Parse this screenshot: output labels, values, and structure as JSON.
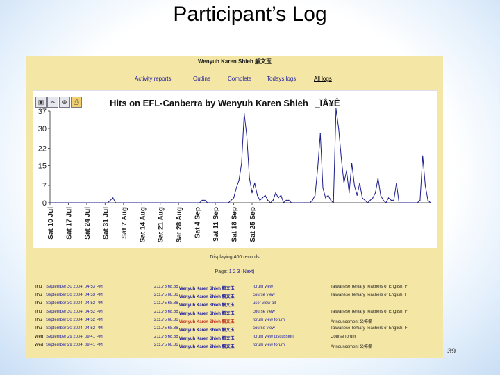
{
  "slide": {
    "title": "Participant’s Log",
    "page_number": "39"
  },
  "moodle": {
    "user_heading": "Wenyuh Karen Shieh 解文玉",
    "nav": [
      {
        "label": "Activity reports",
        "selected": false
      },
      {
        "label": "Outline",
        "selected": false
      },
      {
        "label": "Complete",
        "selected": false
      },
      {
        "label": "Todays logs",
        "selected": false
      },
      {
        "label": "All logs",
        "selected": true
      }
    ],
    "toolbar_icons": [
      "save-icon",
      "scissors-icon",
      "zoom-icon",
      "print-icon"
    ],
    "displaying": "Displaying 400 records",
    "pages": {
      "label": "Page:",
      "links": [
        "1",
        "2",
        "3",
        "(Next)"
      ]
    },
    "log_rows": [
      {
        "day": "Thu",
        "date": "September 30 2004, 04:53 PM",
        "ip": "211.75.68.86",
        "name": "Wenyuh Karen Shieh 解文玉",
        "action": "forum view",
        "info": "Taiwanese Tertiary Teachers of English: F",
        "highlight": false
      },
      {
        "day": "Thu",
        "date": "September 30 2004, 04:53 PM",
        "ip": "211.75.68.86",
        "name": "Wenyuh Karen Shieh 解文玉",
        "action": "course view",
        "info": "Taiwanese Tertiary Teachers of English: F",
        "highlight": false
      },
      {
        "day": "Thu",
        "date": "September 30 2004, 04:52 PM",
        "ip": "211.75.68.86",
        "name": "Wenyuh Karen Shieh 解文玉",
        "action": "user view all",
        "info": "",
        "highlight": false
      },
      {
        "day": "Thu",
        "date": "September 30 2004, 04:52 PM",
        "ip": "211.75.68.86",
        "name": "Wenyuh Karen Shieh 解文玉",
        "action": "course view",
        "info": "Taiwanese Tertiary Teachers of English: F",
        "highlight": false
      },
      {
        "day": "Thu",
        "date": "September 30 2004, 04:52 PM",
        "ip": "211.75.68.86",
        "name": "Wenyuh Karen Shieh 解文玉",
        "action": "forum view forum",
        "info": "Announcement 公佈欄",
        "highlight": true
      },
      {
        "day": "Thu",
        "date": "September 30 2004, 04:52 PM",
        "ip": "211.75.68.86",
        "name": "Wenyuh Karen Shieh 解文玉",
        "action": "course view",
        "info": "Taiwanese Tertiary Teachers of English: F",
        "highlight": false
      },
      {
        "day": "Wed",
        "date": "September 29 2004, 09:41 PM",
        "ip": "211.75.68.86",
        "name": "Wenyuh Karen Shieh 解文玉",
        "action": "forum view discussion",
        "info": "Course forum",
        "highlight": false
      },
      {
        "day": "Wed",
        "date": "September 29 2004, 09:41 PM",
        "ip": "211.75.68.86",
        "name": "Wenyuh Karen Shieh 解文玉",
        "action": "forum view forum",
        "info": "Announcement 公佈欄",
        "highlight": false
      }
    ]
  },
  "colors": {
    "line": "#1c1c8c",
    "slide_bg_edge": "#c9def5",
    "moodle_bg": "#f4e6a4"
  },
  "chart_data": {
    "type": "line",
    "title": "Hits on EFL-Canberra by Wenyuh Karen Shieh",
    "title_garbled_suffix": "_ÏÅ¥Ê",
    "xlabel": "",
    "ylabel": "",
    "ylim": [
      0,
      37
    ],
    "yticks": [
      "0",
      "7",
      "15",
      "22",
      "30",
      "37"
    ],
    "xticks": [
      "Sat 10 Jul",
      "Sat 17 Jul",
      "Sat 24 Jul",
      "Sat 31 Jul",
      "Sat 7 Aug",
      "Sat 14 Aug",
      "Sat 21 Aug",
      "Sat 28 Aug",
      "Sat 4 Sep",
      "Sat 11 Sep",
      "Sat 18 Sep",
      "Sat 25 Sep"
    ],
    "x_start": "Sat 10 Jul",
    "values": [
      0,
      0,
      0,
      0,
      0,
      0,
      0,
      0,
      0,
      0,
      0,
      0,
      0,
      0,
      0,
      0,
      0,
      0,
      0,
      0,
      0,
      0,
      0,
      1,
      2,
      0,
      0,
      0,
      0,
      0,
      0,
      0,
      0,
      0,
      0,
      0,
      0,
      0,
      0,
      0,
      0,
      0,
      0,
      0,
      0,
      0,
      0,
      0,
      0,
      0,
      0,
      0,
      0,
      0,
      0,
      0,
      0,
      0,
      1,
      1,
      0,
      0,
      0,
      0,
      0,
      0,
      0,
      0,
      0,
      1,
      2,
      6,
      9,
      16,
      36,
      27,
      10,
      4,
      8,
      3,
      1,
      2,
      3,
      1,
      0,
      1,
      4,
      2,
      3,
      0,
      1,
      1,
      0,
      0,
      0,
      0,
      0,
      0,
      0,
      0,
      1,
      3,
      14,
      28,
      6,
      2,
      3,
      1,
      0,
      38,
      30,
      18,
      8,
      13,
      4,
      16,
      7,
      3,
      8,
      2,
      1,
      0,
      1,
      2,
      4,
      10,
      3,
      1,
      0,
      2,
      1,
      1,
      8,
      0,
      0,
      0,
      0,
      0,
      0,
      0,
      0,
      1,
      19,
      7,
      1,
      0
    ]
  }
}
